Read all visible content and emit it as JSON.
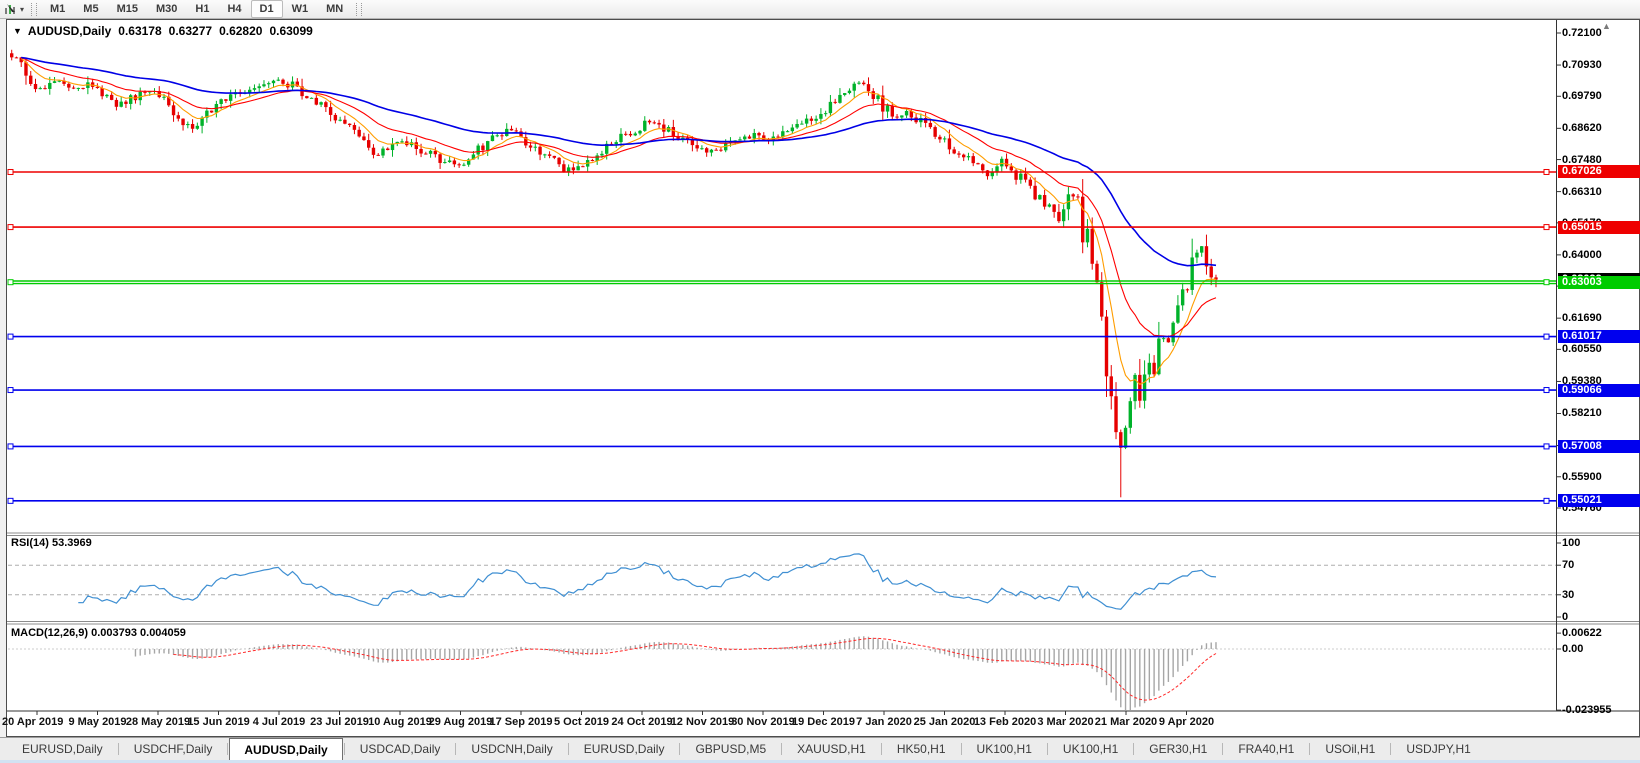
{
  "icons": {
    "symbol_marker": "▼",
    "dropdown_caret": "▾",
    "scroll_end_marker": "▲"
  },
  "toolbar": {
    "timeframes": [
      "M1",
      "M5",
      "M15",
      "M30",
      "H1",
      "H4",
      "D1",
      "W1",
      "MN"
    ],
    "active_timeframe": "D1"
  },
  "chart": {
    "symbol_title": "AUDUSD,Daily",
    "open": "0.63178",
    "high": "0.63277",
    "low": "0.62820",
    "close": "0.63099"
  },
  "price_axis": {
    "ticks": [
      "0.72100",
      "0.70930",
      "0.69790",
      "0.68620",
      "0.67480",
      "0.66310",
      "0.65170",
      "0.64000",
      "0.62860",
      "0.61690",
      "0.60550",
      "0.59380",
      "0.58210",
      "0.57040",
      "0.55900",
      "0.54760"
    ]
  },
  "levels": [
    {
      "label": "0.67026",
      "price": 0.67026,
      "color": "#ee0000",
      "style": "thin"
    },
    {
      "label": "0.65015",
      "price": 0.65015,
      "color": "#ee0000",
      "style": "thin"
    },
    {
      "label": "0.63003",
      "price": 0.63003,
      "color": "#00cc00",
      "style": "thick"
    },
    {
      "label": "0.61017",
      "price": 0.61017,
      "color": "#0000ee",
      "style": "thin"
    },
    {
      "label": "0.59066",
      "price": 0.59066,
      "color": "#0000ee",
      "style": "thin"
    },
    {
      "label": "0.57008",
      "price": 0.57008,
      "color": "#0000ee",
      "style": "thin"
    },
    {
      "label": "0.55021",
      "price": 0.55021,
      "color": "#0000ee",
      "style": "thin"
    }
  ],
  "bid": {
    "label": "0.63099",
    "price": 0.63099,
    "color": "#000000"
  },
  "rsi_panel": {
    "label": "RSI(14) 53.3969",
    "scale": [
      {
        "label": "100",
        "value": 100
      },
      {
        "label": "70",
        "value": 70
      },
      {
        "label": "30",
        "value": 30
      },
      {
        "label": "0",
        "value": 0
      }
    ],
    "overbought": 70,
    "oversold": 30
  },
  "macd_panel": {
    "label": "MACD(12,26,9) 0.003793 0.004059",
    "scale": [
      {
        "label": "0.00622",
        "value": 0.00622
      },
      {
        "label": "0.00",
        "value": 0
      },
      {
        "label": "-0.023955",
        "value": -0.023955
      }
    ]
  },
  "date_axis": [
    "20 Apr 2019",
    "9 May 2019",
    "28 May 2019",
    "15 Jun 2019",
    "4 Jul 2019",
    "23 Jul 2019",
    "10 Aug 2019",
    "29 Aug 2019",
    "17 Sep 2019",
    "5 Oct 2019",
    "24 Oct 2019",
    "12 Nov 2019",
    "30 Nov 2019",
    "19 Dec 2019",
    "7 Jan 2020",
    "25 Jan 2020",
    "13 Feb 2020",
    "3 Mar 2020",
    "21 Mar 2020",
    "9 Apr 2020"
  ],
  "tabs": {
    "items": [
      "EURUSD,Daily",
      "USDCHF,Daily",
      "AUDUSD,Daily",
      "USDCAD,Daily",
      "USDCNH,Daily",
      "EURUSD,Daily",
      "GBPUSD,M5",
      "XAUUSD,H1",
      "HK50,H1",
      "UK100,H1",
      "UK100,H1",
      "GER30,H1",
      "FRA40,H1",
      "USOil,H1",
      "USDJPY,H1"
    ],
    "active_index": 2
  },
  "chart_data": {
    "type": "candlestick",
    "symbol": "AUDUSD",
    "timeframe": "Daily",
    "title": "AUDUSD,Daily",
    "y_range": [
      0.5476,
      0.7257
    ],
    "num_candles": 254,
    "last_ohlc": {
      "open": 0.63178,
      "high": 0.63277,
      "low": 0.6282,
      "close": 0.63099
    },
    "spike_low": {
      "index": 233,
      "price": 0.5515
    },
    "up_color": "#00b22a",
    "down_color": "#e60000",
    "close_waypoints": [
      [
        0,
        0.7135
      ],
      [
        2,
        0.7105
      ],
      [
        4,
        0.7028
      ],
      [
        7,
        0.7012
      ],
      [
        10,
        0.7046
      ],
      [
        13,
        0.7002
      ],
      [
        16,
        0.7022
      ],
      [
        19,
        0.6982
      ],
      [
        22,
        0.6944
      ],
      [
        26,
        0.6976
      ],
      [
        29,
        0.7
      ],
      [
        32,
        0.6962
      ],
      [
        35,
        0.6906
      ],
      [
        38,
        0.6862
      ],
      [
        41,
        0.692
      ],
      [
        44,
        0.6956
      ],
      [
        48,
        0.699
      ],
      [
        52,
        0.7018
      ],
      [
        56,
        0.7046
      ],
      [
        59,
        0.7014
      ],
      [
        62,
        0.6966
      ],
      [
        65,
        0.694
      ],
      [
        68,
        0.6894
      ],
      [
        71,
        0.6872
      ],
      [
        74,
        0.6802
      ],
      [
        76,
        0.6764
      ],
      [
        79,
        0.6792
      ],
      [
        82,
        0.6816
      ],
      [
        85,
        0.6796
      ],
      [
        88,
        0.6764
      ],
      [
        91,
        0.674
      ],
      [
        94,
        0.6724
      ],
      [
        97,
        0.6772
      ],
      [
        100,
        0.6812
      ],
      [
        104,
        0.6858
      ],
      [
        107,
        0.6822
      ],
      [
        110,
        0.6794
      ],
      [
        113,
        0.676
      ],
      [
        116,
        0.6714
      ],
      [
        118,
        0.6702
      ],
      [
        121,
        0.6744
      ],
      [
        125,
        0.6792
      ],
      [
        128,
        0.6832
      ],
      [
        131,
        0.6856
      ],
      [
        134,
        0.6888
      ],
      [
        137,
        0.6862
      ],
      [
        140,
        0.6836
      ],
      [
        143,
        0.6812
      ],
      [
        146,
        0.6784
      ],
      [
        149,
        0.6792
      ],
      [
        152,
        0.681
      ],
      [
        156,
        0.684
      ],
      [
        159,
        0.6822
      ],
      [
        162,
        0.6852
      ],
      [
        165,
        0.6878
      ],
      [
        169,
        0.6906
      ],
      [
        172,
        0.6942
      ],
      [
        175,
        0.699
      ],
      [
        178,
        0.7028
      ],
      [
        180,
        0.7002
      ],
      [
        182,
        0.6964
      ],
      [
        184,
        0.6924
      ],
      [
        186,
        0.6894
      ],
      [
        188,
        0.6918
      ],
      [
        190,
        0.6898
      ],
      [
        193,
        0.6862
      ],
      [
        195,
        0.6834
      ],
      [
        198,
        0.6784
      ],
      [
        200,
        0.6754
      ],
      [
        203,
        0.6724
      ],
      [
        205,
        0.6694
      ],
      [
        207,
        0.6722
      ],
      [
        208,
        0.6742
      ],
      [
        210,
        0.6704
      ],
      [
        212,
        0.6682
      ],
      [
        214,
        0.6634
      ],
      [
        216,
        0.6602
      ],
      [
        218,
        0.6564
      ],
      [
        220,
        0.6534
      ],
      [
        221,
        0.6582
      ],
      [
        223,
        0.6628
      ],
      [
        224,
        0.6578
      ],
      [
        225,
        0.6492
      ],
      [
        226,
        0.645
      ],
      [
        227,
        0.6304
      ],
      [
        228,
        0.628
      ],
      [
        229,
        0.619
      ],
      [
        230,
        0.6002
      ],
      [
        231,
        0.5874
      ],
      [
        232,
        0.577
      ],
      [
        233,
        0.5704
      ],
      [
        234,
        0.58
      ],
      [
        235,
        0.5898
      ],
      [
        236,
        0.5948
      ],
      [
        237,
        0.5864
      ],
      [
        238,
        0.5958
      ],
      [
        239,
        0.6018
      ],
      [
        240,
        0.5984
      ],
      [
        241,
        0.6078
      ],
      [
        242,
        0.6128
      ],
      [
        243,
        0.6098
      ],
      [
        244,
        0.6158
      ],
      [
        245,
        0.6198
      ],
      [
        246,
        0.6248
      ],
      [
        247,
        0.6298
      ],
      [
        248,
        0.6348
      ],
      [
        249,
        0.6398
      ],
      [
        250,
        0.6442
      ],
      [
        251,
        0.638
      ],
      [
        252,
        0.63178
      ],
      [
        253,
        0.63099
      ]
    ],
    "indicators": {
      "ma_fast": {
        "period": 8,
        "color": "#ff9d00"
      },
      "ma_mid": {
        "period": 20,
        "color": "#ff0000"
      },
      "ma_slow": {
        "period": 55,
        "color": "#0000e6"
      },
      "rsi": {
        "period": 14,
        "last": 53.3969,
        "color": "#3f8fd2"
      },
      "macd": {
        "fast": 12,
        "slow": 26,
        "signal": 9,
        "last_main": 0.003793,
        "last_signal": 0.004059,
        "histogram_color": "#a6a6a6",
        "signal_color": "#ff2a2a"
      }
    }
  }
}
